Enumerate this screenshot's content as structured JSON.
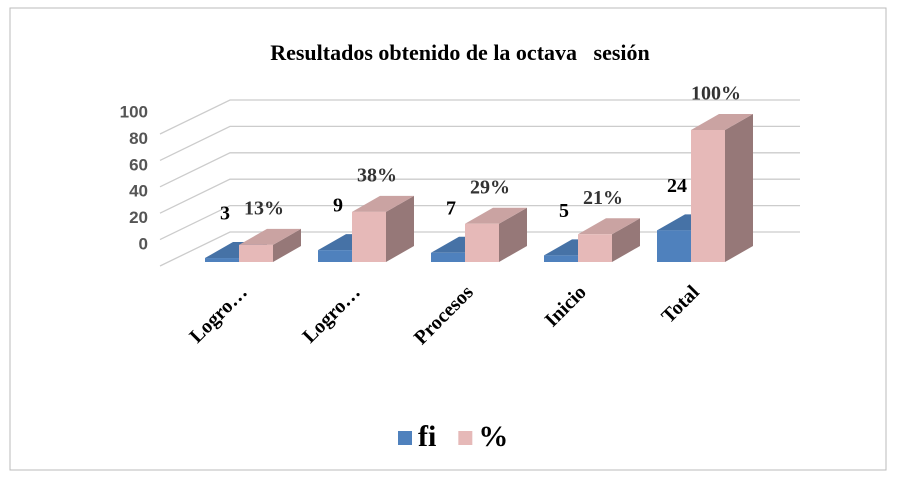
{
  "chart_data": {
    "type": "bar3d",
    "title": "Resultados obtenido de la octava   sesión",
    "categories": [
      "Logro…",
      "Logro…",
      "Procesos",
      "Inicio",
      "Total"
    ],
    "series": [
      {
        "name": "fi",
        "color": "#4f81bd",
        "values": [
          3,
          9,
          7,
          5,
          24
        ]
      },
      {
        "name": "%",
        "color": "#e6b9b8",
        "values": [
          13,
          38,
          29,
          21,
          100
        ],
        "value_labels": [
          "13%",
          "38%",
          "29%",
          "21%",
          "100%"
        ]
      }
    ],
    "ylim": [
      0,
      100
    ],
    "yticks": [
      0,
      20,
      40,
      60,
      80,
      100
    ],
    "grid": true,
    "legend": "bottom"
  }
}
